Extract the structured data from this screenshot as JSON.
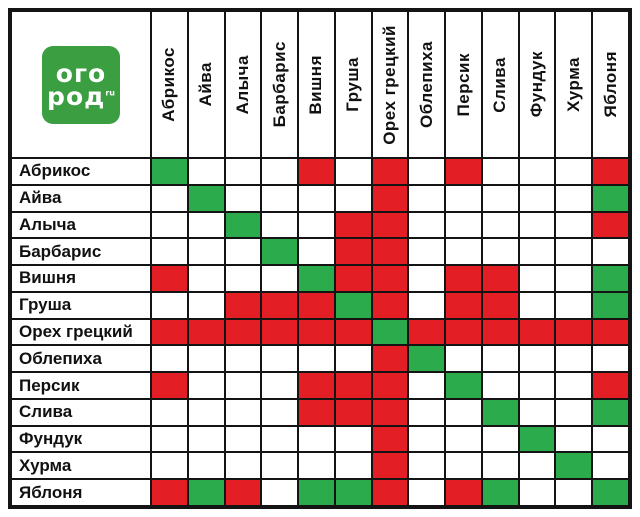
{
  "logo": {
    "line1": "ого",
    "line2": "род",
    "sup": "ru",
    "bg_color": "#3B9E41",
    "text_color": "#FFFFFF"
  },
  "chart_data": {
    "type": "heatmap",
    "title": "",
    "x_categories": [
      "Абрикос",
      "Айва",
      "Алыча",
      "Барбарис",
      "Вишня",
      "Груша",
      "Орех грецкий",
      "Облепиха",
      "Персик",
      "Слива",
      "Фундук",
      "Хурма",
      "Яблоня"
    ],
    "y_categories": [
      "Абрикос",
      "Айва",
      "Алыча",
      "Барбарис",
      "Вишня",
      "Груша",
      "Орех грецкий",
      "Облепиха",
      "Персик",
      "Слива",
      "Фундук",
      "Хурма",
      "Яблоня"
    ],
    "values": [
      [
        "g",
        "w",
        "w",
        "w",
        "r",
        "w",
        "r",
        "w",
        "r",
        "w",
        "w",
        "w",
        "r"
      ],
      [
        "w",
        "g",
        "w",
        "w",
        "w",
        "w",
        "r",
        "w",
        "w",
        "w",
        "w",
        "w",
        "g"
      ],
      [
        "w",
        "w",
        "g",
        "w",
        "w",
        "r",
        "r",
        "w",
        "w",
        "w",
        "w",
        "w",
        "r"
      ],
      [
        "w",
        "w",
        "w",
        "g",
        "w",
        "r",
        "r",
        "w",
        "w",
        "w",
        "w",
        "w",
        "w"
      ],
      [
        "r",
        "w",
        "w",
        "w",
        "g",
        "r",
        "r",
        "w",
        "r",
        "r",
        "w",
        "w",
        "g"
      ],
      [
        "w",
        "w",
        "r",
        "r",
        "r",
        "g",
        "r",
        "w",
        "r",
        "r",
        "w",
        "w",
        "g"
      ],
      [
        "r",
        "r",
        "r",
        "r",
        "r",
        "r",
        "g",
        "r",
        "r",
        "r",
        "r",
        "r",
        "r"
      ],
      [
        "w",
        "w",
        "w",
        "w",
        "w",
        "w",
        "r",
        "g",
        "w",
        "w",
        "w",
        "w",
        "w"
      ],
      [
        "r",
        "w",
        "w",
        "w",
        "r",
        "r",
        "r",
        "w",
        "g",
        "w",
        "w",
        "w",
        "r"
      ],
      [
        "w",
        "w",
        "w",
        "w",
        "r",
        "r",
        "r",
        "w",
        "w",
        "g",
        "w",
        "w",
        "g"
      ],
      [
        "w",
        "w",
        "w",
        "w",
        "w",
        "w",
        "r",
        "w",
        "w",
        "w",
        "g",
        "w",
        "w"
      ],
      [
        "w",
        "w",
        "w",
        "w",
        "w",
        "w",
        "r",
        "w",
        "w",
        "w",
        "w",
        "g",
        "w"
      ],
      [
        "r",
        "g",
        "r",
        "w",
        "g",
        "g",
        "r",
        "w",
        "r",
        "g",
        "w",
        "w",
        "g"
      ]
    ],
    "cell_colors": {
      "g": "#2BAB4C",
      "r": "#E31E24",
      "w": "#FFFFFF"
    },
    "cell_meaning": {
      "g": "compatible",
      "r": "incompatible",
      "w": "neutral"
    },
    "grid_line_color": "#141414",
    "legend_position": "none"
  }
}
